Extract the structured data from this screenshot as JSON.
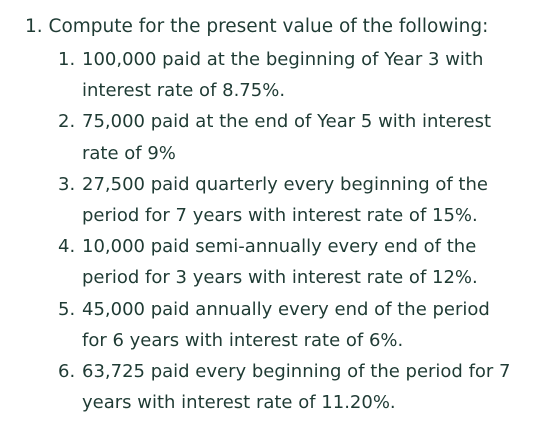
{
  "question": {
    "number": "1.",
    "prompt": "Compute for the present value of the following:"
  },
  "items": [
    {
      "number": "1.",
      "text": "100,000 paid at the beginning of Year 3 with interest rate of 8.75%."
    },
    {
      "number": "2.",
      "text": "75,000 paid at the end of Year 5 with interest rate of 9%"
    },
    {
      "number": "3.",
      "text": "27,500 paid quarterly every beginning of the period for 7 years with interest rate of 15%."
    },
    {
      "number": "4.",
      "text": "10,000 paid semi-annually every end of the period for 3 years with interest rate of 12%."
    },
    {
      "number": "5.",
      "text": "45,000 paid annually every end of the period for 6 years with interest rate of 6%."
    },
    {
      "number": "6.",
      "text": "63,725 paid every beginning of the period for 7 years with interest rate of 11.20%."
    }
  ]
}
